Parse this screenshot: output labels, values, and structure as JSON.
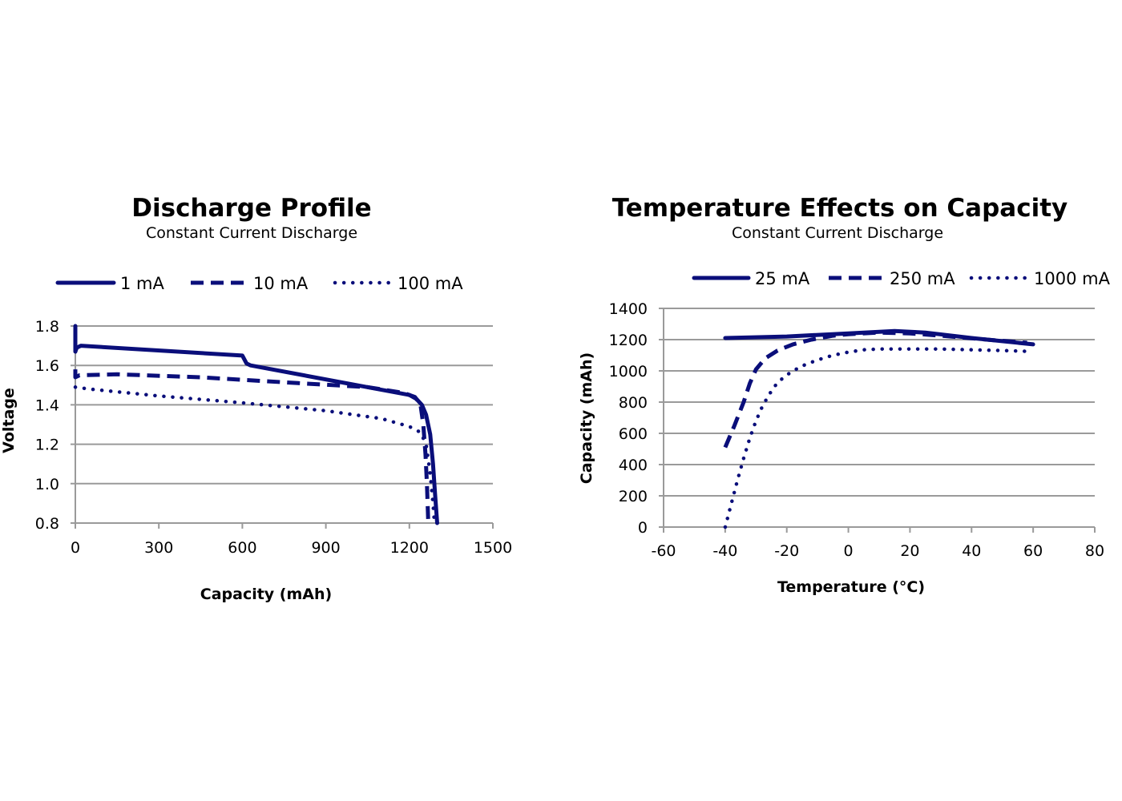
{
  "colors": {
    "series": "#0a0e7a",
    "grid": "#9a9a9a",
    "text": "#000000"
  },
  "chart_data": [
    {
      "type": "line",
      "title": "Discharge Profile",
      "subtitle": "Constant Current Discharge",
      "xlabel": "Capacity (mAh)",
      "ylabel": "Voltage",
      "xlim": [
        0,
        1500
      ],
      "ylim": [
        0.8,
        1.8
      ],
      "xticks": [
        "0",
        "300",
        "600",
        "900",
        "1200",
        "1500"
      ],
      "yticks": [
        "0.8",
        "1.0",
        "1.2",
        "1.4",
        "1.6",
        "1.8"
      ],
      "xtick_values": [
        0,
        300,
        600,
        900,
        1200,
        1500
      ],
      "ytick_values": [
        0.8,
        1.0,
        1.2,
        1.4,
        1.6,
        1.8
      ],
      "grid": "horizontal",
      "legend_position": "top",
      "series": [
        {
          "name": "1 mA",
          "style": "solid",
          "x": [
            0,
            0,
            5,
            20,
            600,
            615,
            630,
            1200,
            1225,
            1245,
            1260,
            1275,
            1285,
            1292,
            1300
          ],
          "y": [
            1.8,
            1.67,
            1.69,
            1.7,
            1.65,
            1.61,
            1.6,
            1.45,
            1.43,
            1.4,
            1.35,
            1.25,
            1.1,
            0.95,
            0.8
          ]
        },
        {
          "name": "10 mA",
          "style": "dashed",
          "x": [
            0,
            0,
            15,
            150,
            450,
            800,
            1050,
            1180,
            1220,
            1240,
            1250,
            1258,
            1263,
            1268
          ],
          "y": [
            1.58,
            1.54,
            1.55,
            1.555,
            1.54,
            1.51,
            1.49,
            1.46,
            1.44,
            1.4,
            1.3,
            1.15,
            1.0,
            0.8
          ]
        },
        {
          "name": "100 mA",
          "style": "dotted",
          "x": [
            0,
            50,
            300,
            600,
            900,
            1100,
            1200,
            1240,
            1260,
            1275,
            1285,
            1290
          ],
          "y": [
            1.49,
            1.48,
            1.445,
            1.41,
            1.37,
            1.33,
            1.29,
            1.26,
            1.2,
            1.05,
            0.9,
            0.8
          ]
        }
      ]
    },
    {
      "type": "line",
      "title": "Temperature Effects on Capacity",
      "subtitle": "Constant Current Discharge",
      "xlabel": "Temperature (°C)",
      "ylabel": "Capacity (mAh)",
      "xlim": [
        -60,
        80
      ],
      "ylim": [
        0,
        1400
      ],
      "xticks": [
        "-60",
        "-40",
        "-20",
        "0",
        "20",
        "40",
        "60",
        "80"
      ],
      "yticks": [
        "0",
        "200",
        "400",
        "600",
        "800",
        "1000",
        "1200",
        "1400"
      ],
      "xtick_values": [
        -60,
        -40,
        -20,
        0,
        20,
        40,
        60,
        80
      ],
      "ytick_values": [
        0,
        200,
        400,
        600,
        800,
        1000,
        1200,
        1400
      ],
      "grid": "horizontal",
      "legend_position": "top",
      "series": [
        {
          "name": "25 mA",
          "style": "solid",
          "x": [
            -40,
            -20,
            0,
            15,
            25,
            40,
            60
          ],
          "y": [
            1210,
            1220,
            1240,
            1255,
            1245,
            1210,
            1170
          ]
        },
        {
          "name": "250 mA",
          "style": "dashed",
          "x": [
            -40,
            -37,
            -34,
            -32,
            -30,
            -27,
            -23,
            -18,
            -12,
            -5,
            0,
            10,
            20,
            30,
            45,
            58
          ],
          "y": [
            510,
            650,
            800,
            920,
            1010,
            1080,
            1130,
            1170,
            1200,
            1225,
            1235,
            1245,
            1240,
            1225,
            1200,
            1180
          ]
        },
        {
          "name": "1000 mA",
          "style": "dotted",
          "x": [
            -40,
            -38,
            -36,
            -34,
            -32,
            -30,
            -28,
            -26,
            -24,
            -21,
            -18,
            -14,
            -10,
            -5,
            0,
            5,
            10,
            20,
            30,
            40,
            50,
            58
          ],
          "y": [
            0,
            150,
            300,
            440,
            570,
            680,
            770,
            840,
            900,
            960,
            1000,
            1040,
            1070,
            1100,
            1120,
            1135,
            1140,
            1140,
            1140,
            1135,
            1130,
            1125
          ]
        }
      ]
    }
  ]
}
